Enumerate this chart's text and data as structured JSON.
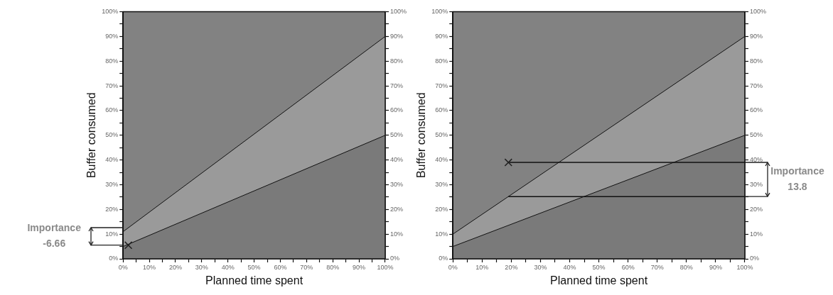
{
  "chart_data": [
    {
      "type": "line",
      "xlabel": "Planned time spent",
      "ylabel": "Buffer consumed",
      "xlim": [
        0,
        100
      ],
      "ylim": [
        0,
        100
      ],
      "y2lim": [
        0,
        100
      ],
      "xticks": [
        {
          "value": 0,
          "label": "0%"
        },
        {
          "value": 5,
          "label": null
        },
        {
          "value": 10,
          "label": "10%"
        },
        {
          "value": 15,
          "label": null
        },
        {
          "value": 20,
          "label": "20%"
        },
        {
          "value": 25,
          "label": null
        },
        {
          "value": 30,
          "label": "30%"
        },
        {
          "value": 35,
          "label": null
        },
        {
          "value": 40,
          "label": "40%"
        },
        {
          "value": 45,
          "label": null
        },
        {
          "value": 50,
          "label": "50%"
        },
        {
          "value": 55,
          "label": null
        },
        {
          "value": 60,
          "label": "60%"
        },
        {
          "value": 65,
          "label": null
        },
        {
          "value": 70,
          "label": "70%"
        },
        {
          "value": 75,
          "label": null
        },
        {
          "value": 80,
          "label": "80%"
        },
        {
          "value": 85,
          "label": null
        },
        {
          "value": 90,
          "label": "90%"
        },
        {
          "value": 95,
          "label": null
        },
        {
          "value": 100,
          "label": "100%"
        }
      ],
      "yticks": [
        {
          "value": 0,
          "label": "0%"
        },
        {
          "value": 5,
          "label": null
        },
        {
          "value": 10,
          "label": "10%"
        },
        {
          "value": 15,
          "label": null
        },
        {
          "value": 20,
          "label": "20%"
        },
        {
          "value": 25,
          "label": null
        },
        {
          "value": 30,
          "label": "30%"
        },
        {
          "value": 35,
          "label": null
        },
        {
          "value": 40,
          "label": "40%"
        },
        {
          "value": 45,
          "label": null
        },
        {
          "value": 50,
          "label": "50%"
        },
        {
          "value": 55,
          "label": null
        },
        {
          "value": 60,
          "label": "60%"
        },
        {
          "value": 65,
          "label": null
        },
        {
          "value": 70,
          "label": "70%"
        },
        {
          "value": 75,
          "label": null
        },
        {
          "value": 80,
          "label": "80%"
        },
        {
          "value": 85,
          "label": null
        },
        {
          "value": 90,
          "label": "90%"
        },
        {
          "value": 95,
          "label": null
        },
        {
          "value": 100,
          "label": "100%"
        }
      ],
      "y2ticks": [
        {
          "value": 0,
          "label": "0%"
        },
        {
          "value": 5,
          "label": null
        },
        {
          "value": 10,
          "label": "10%"
        },
        {
          "value": 15,
          "label": null
        },
        {
          "value": 20,
          "label": "20%"
        },
        {
          "value": 25,
          "label": null
        },
        {
          "value": 30,
          "label": "30%"
        },
        {
          "value": 35,
          "label": null
        },
        {
          "value": 40,
          "label": "40%"
        },
        {
          "value": 45,
          "label": null
        },
        {
          "value": 50,
          "label": "50%"
        },
        {
          "value": 55,
          "label": null
        },
        {
          "value": 60,
          "label": "60%"
        },
        {
          "value": 65,
          "label": null
        },
        {
          "value": 70,
          "label": "70%"
        },
        {
          "value": 75,
          "label": null
        },
        {
          "value": 80,
          "label": "80%"
        },
        {
          "value": 85,
          "label": null
        },
        {
          "value": 90,
          "label": "90%"
        },
        {
          "value": 95,
          "label": null
        },
        {
          "value": 100,
          "label": "100%"
        }
      ],
      "series": [
        {
          "type": "area",
          "color": "#9a9a9a",
          "x": [
            0,
            100
          ],
          "values": [
            11,
            90
          ]
        },
        {
          "type": "area",
          "color": "#7a7a7a",
          "x": [
            0,
            100
          ],
          "values": [
            5,
            50
          ]
        },
        {
          "type": "scatter",
          "color": "#222222",
          "marker": "cross",
          "x": [
            2
          ],
          "values": [
            5.5
          ]
        }
      ],
      "annotations": [
        "Importance -6.66"
      ],
      "grid": false,
      "legend": false
    },
    {
      "type": "line",
      "xlabel": "Planned time spent",
      "ylabel": "Buffer consumed",
      "xlim": [
        0,
        100
      ],
      "ylim": [
        0,
        100
      ],
      "y2lim": [
        0,
        100
      ],
      "xticks": [
        {
          "value": 0,
          "label": "0%"
        },
        {
          "value": 5,
          "label": null
        },
        {
          "value": 10,
          "label": "10%"
        },
        {
          "value": 15,
          "label": null
        },
        {
          "value": 20,
          "label": "20%"
        },
        {
          "value": 25,
          "label": null
        },
        {
          "value": 30,
          "label": "30%"
        },
        {
          "value": 35,
          "label": null
        },
        {
          "value": 40,
          "label": "40%"
        },
        {
          "value": 45,
          "label": null
        },
        {
          "value": 50,
          "label": "50%"
        },
        {
          "value": 55,
          "label": null
        },
        {
          "value": 60,
          "label": "60%"
        },
        {
          "value": 65,
          "label": null
        },
        {
          "value": 70,
          "label": "70%"
        },
        {
          "value": 75,
          "label": null
        },
        {
          "value": 80,
          "label": "80%"
        },
        {
          "value": 85,
          "label": null
        },
        {
          "value": 90,
          "label": "90%"
        },
        {
          "value": 95,
          "label": null
        },
        {
          "value": 100,
          "label": "100%"
        }
      ],
      "yticks": [
        {
          "value": 0,
          "label": "0%"
        },
        {
          "value": 5,
          "label": null
        },
        {
          "value": 10,
          "label": "10%"
        },
        {
          "value": 15,
          "label": null
        },
        {
          "value": 20,
          "label": "20%"
        },
        {
          "value": 25,
          "label": null
        },
        {
          "value": 30,
          "label": "30%"
        },
        {
          "value": 35,
          "label": null
        },
        {
          "value": 40,
          "label": "40%"
        },
        {
          "value": 45,
          "label": null
        },
        {
          "value": 50,
          "label": "50%"
        },
        {
          "value": 55,
          "label": null
        },
        {
          "value": 60,
          "label": "60%"
        },
        {
          "value": 65,
          "label": null
        },
        {
          "value": 70,
          "label": "70%"
        },
        {
          "value": 75,
          "label": null
        },
        {
          "value": 80,
          "label": "80%"
        },
        {
          "value": 85,
          "label": null
        },
        {
          "value": 90,
          "label": "90%"
        },
        {
          "value": 95,
          "label": null
        },
        {
          "value": 100,
          "label": "100%"
        }
      ],
      "y2ticks": [
        {
          "value": 0,
          "label": "0%"
        },
        {
          "value": 5,
          "label": null
        },
        {
          "value": 10,
          "label": "10%"
        },
        {
          "value": 15,
          "label": null
        },
        {
          "value": 20,
          "label": "20%"
        },
        {
          "value": 25,
          "label": null
        },
        {
          "value": 30,
          "label": "30%"
        },
        {
          "value": 35,
          "label": null
        },
        {
          "value": 40,
          "label": "40%"
        },
        {
          "value": 45,
          "label": null
        },
        {
          "value": 50,
          "label": "50%"
        },
        {
          "value": 55,
          "label": null
        },
        {
          "value": 60,
          "label": "60%"
        },
        {
          "value": 65,
          "label": null
        },
        {
          "value": 70,
          "label": "70%"
        },
        {
          "value": 75,
          "label": null
        },
        {
          "value": 80,
          "label": "80%"
        },
        {
          "value": 85,
          "label": null
        },
        {
          "value": 90,
          "label": "90%"
        },
        {
          "value": 95,
          "label": null
        },
        {
          "value": 100,
          "label": "100%"
        }
      ],
      "series": [
        {
          "type": "area",
          "color": "#9a9a9a",
          "x": [
            0,
            100
          ],
          "values": [
            10,
            90
          ]
        },
        {
          "type": "area",
          "color": "#7a7a7a",
          "x": [
            0,
            100
          ],
          "values": [
            5,
            50
          ]
        },
        {
          "type": "line",
          "color": "#111111",
          "x": [
            19,
            100
          ],
          "values": [
            39,
            39
          ]
        },
        {
          "type": "line",
          "color": "#111111",
          "x": [
            19,
            100
          ],
          "values": [
            25.2,
            25.2
          ]
        },
        {
          "type": "scatter",
          "color": "#222222",
          "marker": "cross",
          "x": [
            19
          ],
          "values": [
            39
          ]
        }
      ],
      "annotations": [
        "Importance 13.8"
      ],
      "grid": false,
      "legend": false
    }
  ]
}
